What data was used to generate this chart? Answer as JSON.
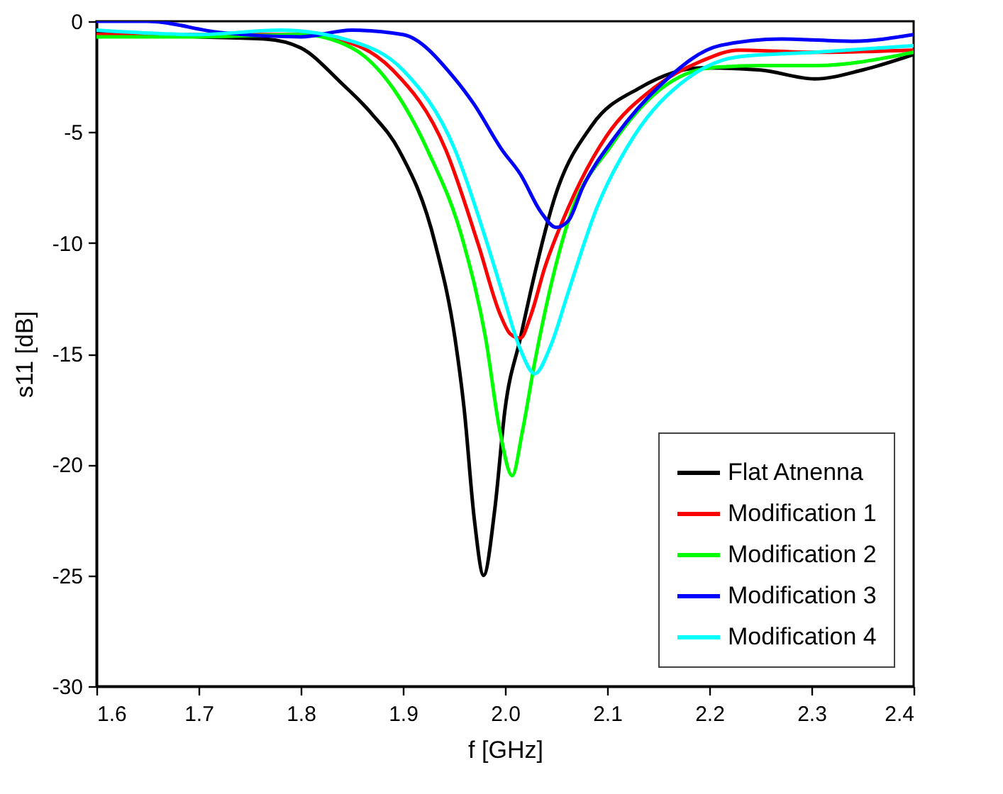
{
  "chart_data": {
    "type": "line",
    "xlabel": "f [GHz]",
    "ylabel": "s11 [dB]",
    "xlim": [
      1.6,
      2.4
    ],
    "xticks": [
      1.6,
      1.7,
      1.8,
      1.9,
      {
        "value": 2,
        "label": "2.0"
      },
      2.1,
      2.2,
      2.3,
      2.4
    ],
    "ylim": [
      -30,
      0
    ],
    "yticks": [
      -30,
      -25,
      -20,
      -15,
      -10,
      -5,
      0
    ],
    "grid": false,
    "legend": "bottom right",
    "marker": "none",
    "line_style": "solid",
    "series": [
      {
        "name": "Flat Atnenna",
        "color": "#000000",
        "x": [
          1.6,
          1.65,
          1.7,
          1.765,
          1.8,
          1.84,
          1.87,
          1.896,
          1.932,
          1.951,
          1.96,
          1.97,
          1.979,
          1.99,
          2.0,
          2.015,
          2.025,
          2.049,
          2.085,
          2.132,
          2.192,
          2.25,
          2.303,
          2.35,
          2.4
        ],
        "values": [
          -0.5,
          -0.6,
          -0.7,
          -0.8,
          -1.2,
          -2.8,
          -4.2,
          -5.8,
          -10.1,
          -14.3,
          -17.5,
          -22.5,
          -25.0,
          -22.0,
          -17.5,
          -14.3,
          -12.2,
          -7.9,
          -4.7,
          -3.0,
          -2.1,
          -2.2,
          -2.6,
          -2.2,
          -1.5
        ]
      },
      {
        "name": "Modification 1",
        "color": "#ff0000",
        "x": [
          1.6,
          1.7,
          1.8,
          1.85,
          1.89,
          1.942,
          1.974,
          1.995,
          2.005,
          2.015,
          2.025,
          2.039,
          2.062,
          2.099,
          2.146,
          2.192,
          2.229,
          2.303,
          2.4
        ],
        "values": [
          -0.6,
          -0.6,
          -0.6,
          -1.0,
          -2.2,
          -5.8,
          -10.1,
          -13.2,
          -14.1,
          -14.3,
          -13.3,
          -11.1,
          -8.4,
          -5.2,
          -3.0,
          -1.8,
          -1.3,
          -1.4,
          -1.3
        ]
      },
      {
        "name": "Modification 2",
        "color": "#00ff00",
        "x": [
          1.6,
          1.7,
          1.8,
          1.85,
          1.89,
          1.924,
          1.96,
          1.981,
          1.995,
          2.007,
          2.017,
          2.029,
          2.062,
          2.104,
          2.154,
          2.201,
          2.25,
          2.303,
          2.4
        ],
        "values": [
          -0.7,
          -0.7,
          -0.6,
          -1.2,
          -3.0,
          -5.8,
          -10.1,
          -14.3,
          -18.5,
          -20.5,
          -18.5,
          -15.4,
          -9.0,
          -5.6,
          -3.0,
          -2.1,
          -2.0,
          -2.0,
          -1.4
        ]
      },
      {
        "name": "Modification 3",
        "color": "#0000ff",
        "x": [
          1.6,
          1.65,
          1.72,
          1.8,
          1.85,
          1.9,
          1.951,
          1.969,
          1.997,
          2.015,
          2.035,
          2.05,
          2.062,
          2.076,
          2.108,
          2.154,
          2.21,
          2.271,
          2.34,
          2.4
        ],
        "values": [
          0.0,
          0.0,
          -0.5,
          -0.7,
          -0.4,
          -0.6,
          -2.6,
          -3.7,
          -5.8,
          -6.9,
          -8.6,
          -9.3,
          -9.0,
          -7.5,
          -5.2,
          -2.8,
          -1.1,
          -0.8,
          -0.9,
          -0.6
        ]
      },
      {
        "name": "Modification 4",
        "color": "#00ffff",
        "x": [
          1.6,
          1.7,
          1.78,
          1.85,
          1.9,
          1.951,
          1.983,
          1.997,
          2.015,
          2.029,
          2.045,
          2.062,
          2.09,
          2.126,
          2.178,
          2.229,
          2.303,
          2.4
        ],
        "values": [
          -0.4,
          -0.6,
          -0.4,
          -0.9,
          -2.2,
          -5.8,
          -10.1,
          -12.2,
          -14.8,
          -15.9,
          -14.6,
          -12.2,
          -8.4,
          -5.2,
          -2.6,
          -1.6,
          -1.4,
          -1.1
        ]
      }
    ]
  }
}
